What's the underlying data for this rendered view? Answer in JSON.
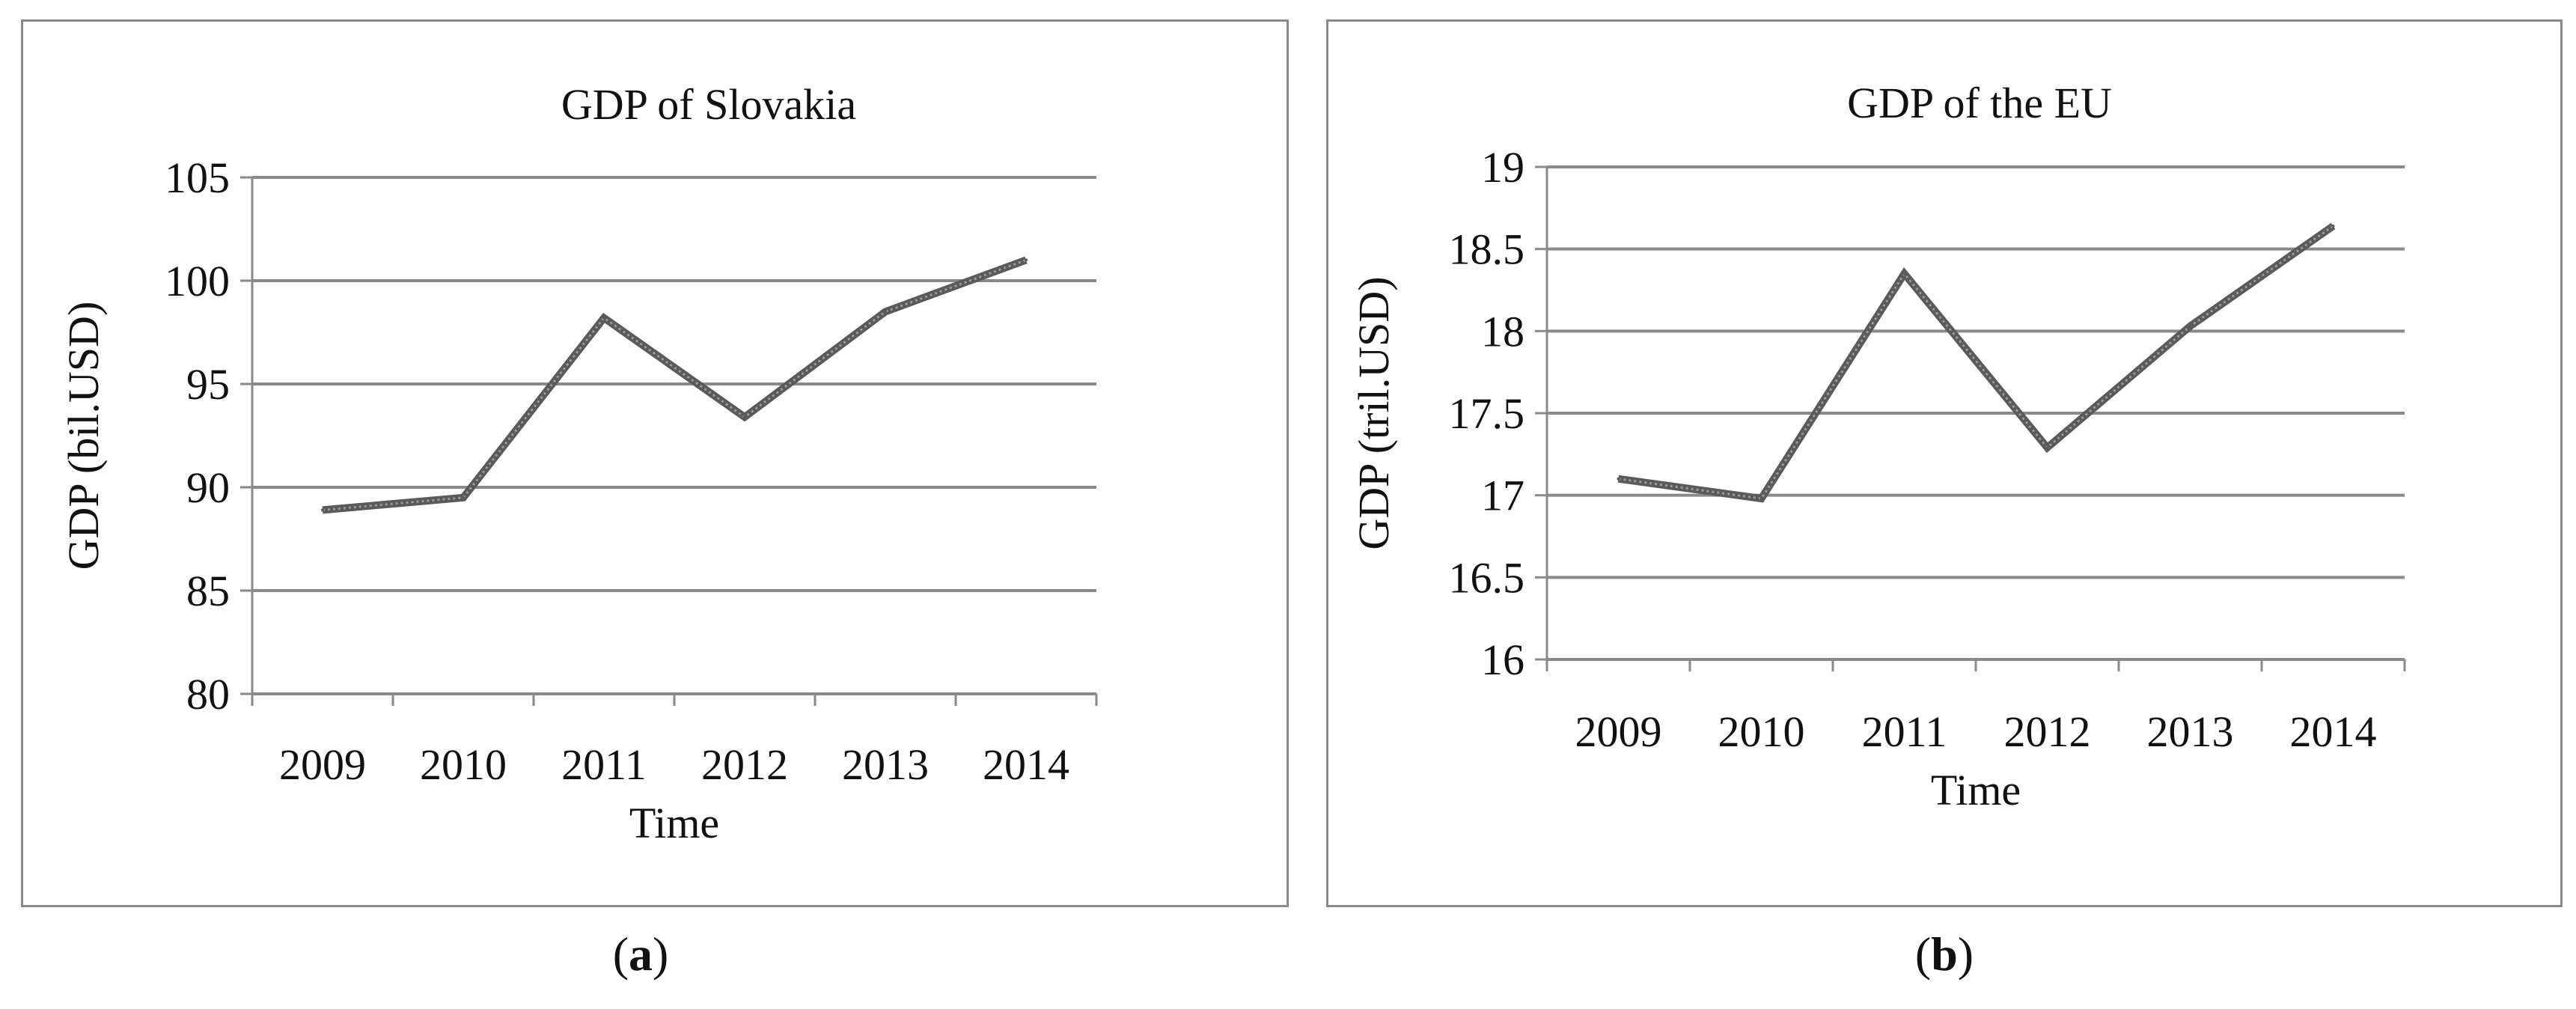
{
  "chart_data": [
    {
      "id": "a",
      "type": "line",
      "title": "GDP of Slovakia",
      "xlabel": "Time",
      "ylabel": "GDP (bil.USD)",
      "categories": [
        "2009",
        "2010",
        "2011",
        "2012",
        "2013",
        "2014"
      ],
      "series": [
        {
          "values": [
            88.9,
            89.5,
            98.2,
            93.4,
            98.5,
            101.0
          ]
        }
      ],
      "ylim": [
        80,
        105
      ],
      "yticks": [
        "80",
        "85",
        "90",
        "95",
        "100",
        "105"
      ],
      "grid": true,
      "legend": "none",
      "line_color": "#5a5a5a",
      "caption": "a"
    },
    {
      "id": "b",
      "type": "line",
      "title": "GDP of the EU",
      "xlabel": "Time",
      "ylabel": "GDP (tril.USD)",
      "categories": [
        "2009",
        "2010",
        "2011",
        "2012",
        "2013",
        "2014"
      ],
      "series": [
        {
          "values": [
            17.1,
            16.98,
            18.35,
            17.29,
            18.03,
            18.64
          ]
        }
      ],
      "ylim": [
        16,
        19
      ],
      "yticks": [
        "16",
        "16.5",
        "17",
        "17.5",
        "18",
        "18.5",
        "19"
      ],
      "grid": true,
      "legend": "none",
      "line_color": "#5a5a5a",
      "caption": "b"
    }
  ]
}
